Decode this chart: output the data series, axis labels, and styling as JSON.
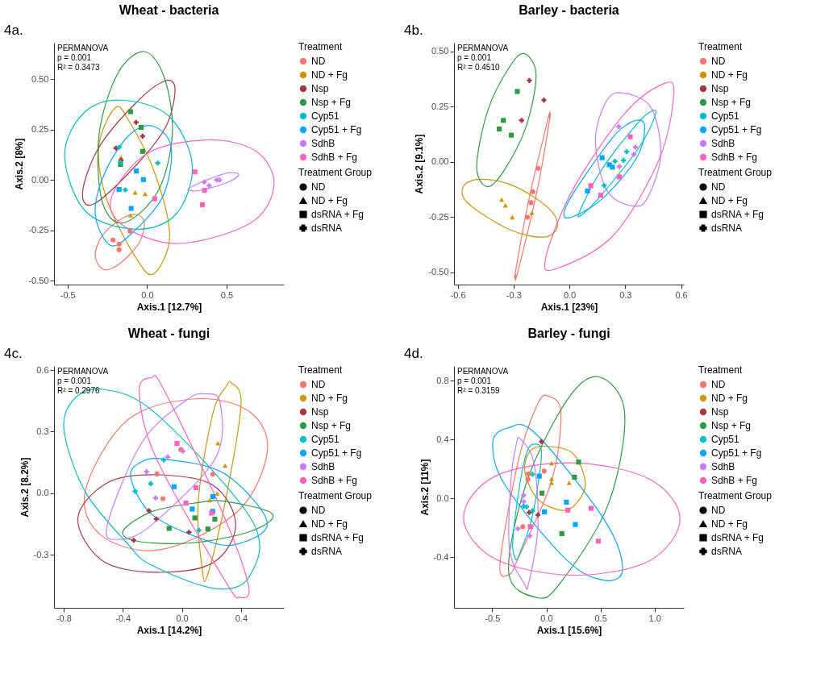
{
  "chart_data": [
    {
      "type": "scatter",
      "title": "Wheat - bacteria",
      "xlabel": "Axis.1 [12.7%]",
      "ylabel": "Axis.2 [8%]",
      "legend_title": [
        "Treatment",
        "Treatment Group"
      ],
      "legend": "right",
      "grid": false,
      "annotations": [
        "4a.",
        "PERMANOVA",
        "p = 0.001",
        "R² = 0.3473",
        "ND",
        "ND + Fg",
        "dsRNA + Fg",
        "dsRNA"
      ],
      "xlim": [
        -0.585,
        0.86
      ],
      "ylim": [
        -0.52,
        0.68
      ],
      "xticks": [
        {
          "value": -0.5,
          "label": "-0.5"
        },
        {
          "value": 0,
          "label": "0.0"
        },
        {
          "value": 0.5,
          "label": "0.5"
        }
      ],
      "yticks": [
        {
          "value": -0.5,
          "label": "-0.50"
        },
        {
          "value": -0.25,
          "label": "-0.25"
        },
        {
          "value": 0,
          "label": "0.00"
        },
        {
          "value": 0.25,
          "label": "0.25"
        },
        {
          "value": 0.5,
          "label": "0.50"
        }
      ],
      "series": [
        {
          "name": "ND",
          "color": "#f8766d",
          "marker": "circle",
          "x": [
            -0.214,
            -0.176,
            -0.176,
            -0.107
          ],
          "values": [
            -0.299,
            -0.319,
            -0.347,
            -0.255
          ]
        },
        {
          "name": "ND + Fg",
          "color": "#cd9600",
          "marker": "triangle",
          "x": [
            -0.164,
            -0.075,
            -0.012,
            -0.104
          ],
          "values": [
            0.111,
            -0.063,
            -0.07,
            -0.176
          ]
        },
        {
          "name": "Nsp",
          "color": "#a83545",
          "marker": "cross",
          "x": [
            -0.196,
            -0.069,
            -0.028,
            -0.164
          ],
          "values": [
            0.157,
            0.285,
            0.216,
            0.096
          ]
        },
        {
          "name": "Nsp + Fg",
          "color": "#2e9a44",
          "marker": "square",
          "x": [
            -0.104,
            -0.037,
            -0.028,
            -0.167
          ],
          "values": [
            0.338,
            0.26,
            0.141,
            0.076
          ]
        },
        {
          "name": "Cyp51",
          "color": "#00bfc4",
          "marker": "cross",
          "x": [
            -0.176,
            0.067,
            -0.137,
            -0.167
          ],
          "values": [
            0.161,
            0.083,
            -0.05,
            0.087
          ]
        },
        {
          "name": "Cyp51 + Fg",
          "color": "#00a9ff",
          "marker": "square",
          "x": [
            -0.067,
            -0.023,
            -0.176,
            -0.1
          ],
          "values": [
            0.043,
            0.001,
            -0.048,
            -0.142
          ]
        },
        {
          "name": "SdhB",
          "color": "#c77cff",
          "marker": "cross",
          "x": [
            0.36,
            0.39,
            0.438,
            0.455
          ],
          "values": [
            -0.012,
            -0.029,
            -0.001,
            -0.001
          ]
        },
        {
          "name": "SdhB + Fg",
          "color": "#ff61c3",
          "marker": "square",
          "x": [
            0.301,
            0.361,
            0.348,
            0.048
          ],
          "values": [
            0.039,
            -0.053,
            -0.124,
            -0.094
          ]
        }
      ]
    },
    {
      "type": "scatter",
      "title": "Barley - bacteria",
      "xlabel": "Axis.1 [23%]",
      "ylabel": "Axis.2 [9.1%]",
      "legend_title": [
        "Treatment",
        "Treatment Group"
      ],
      "legend": "right",
      "grid": false,
      "annotations": [
        "4b.",
        "PERMANOVA",
        "p = 0.001",
        "R² = 0.4510",
        "ND",
        "ND + Fg",
        "dsRNA + Fg",
        "dsRNA"
      ],
      "xlim": [
        -0.62,
        0.615
      ],
      "ylim": [
        -0.556,
        0.54
      ],
      "xticks": [
        {
          "value": -0.6,
          "label": "-0.6"
        },
        {
          "value": -0.3,
          "label": "-0.3"
        },
        {
          "value": 0,
          "label": "0.0"
        },
        {
          "value": 0.3,
          "label": "0.3"
        },
        {
          "value": 0.6,
          "label": "0.6"
        }
      ],
      "yticks": [
        {
          "value": -0.5,
          "label": "-0.50"
        },
        {
          "value": -0.25,
          "label": "-0.25"
        },
        {
          "value": 0,
          "label": "0.00"
        },
        {
          "value": 0.25,
          "label": "0.25"
        },
        {
          "value": 0.5,
          "label": "0.50"
        }
      ],
      "series": [
        {
          "name": "ND",
          "color": "#f8766d",
          "marker": "circle",
          "x": [
            -0.168,
            -0.196,
            -0.206,
            -0.226
          ],
          "values": [
            -0.029,
            -0.135,
            -0.185,
            -0.251
          ]
        },
        {
          "name": "ND + Fg",
          "color": "#cd9600",
          "marker": "triangle",
          "x": [
            -0.364,
            -0.344,
            -0.307,
            -0.202
          ],
          "values": [
            -0.171,
            -0.197,
            -0.251,
            -0.231
          ]
        },
        {
          "name": "Nsp",
          "color": "#a83545",
          "marker": "cross",
          "x": [
            -0.215,
            -0.137,
            -0.257
          ],
          "values": [
            0.369,
            0.28,
            0.188
          ]
        },
        {
          "name": "Nsp + Fg",
          "color": "#2e9a44",
          "marker": "square",
          "x": [
            -0.28,
            -0.355,
            -0.377,
            -0.312
          ],
          "values": [
            0.319,
            0.188,
            0.149,
            0.121
          ]
        },
        {
          "name": "Cyp51",
          "color": "#00bfc4",
          "marker": "cross",
          "x": [
            0.308,
            0.291,
            0.245,
            0.187
          ],
          "values": [
            0.046,
            0.007,
            0.003,
            -0.107
          ]
        },
        {
          "name": "Cyp51 + Fg",
          "color": "#00a9ff",
          "marker": "square",
          "x": [
            0.176,
            0.215,
            0.231,
            0.097
          ],
          "values": [
            0.019,
            -0.013,
            -0.024,
            -0.132
          ]
        },
        {
          "name": "SdhB",
          "color": "#c77cff",
          "marker": "cross",
          "x": [
            0.265,
            0.355,
            0.346,
            0.269
          ],
          "values": [
            0.16,
            0.067,
            0.034,
            -0.021
          ]
        },
        {
          "name": "SdhB + Fg",
          "color": "#ff61c3",
          "marker": "square",
          "x": [
            0.327,
            0.269,
            0.115,
            0.168
          ],
          "values": [
            0.114,
            -0.068,
            -0.108,
            -0.151
          ]
        }
      ]
    },
    {
      "type": "scatter",
      "title": "Wheat - fungi",
      "xlabel": "Axis.1 [14.2%]",
      "ylabel": "Axis.2 [8.2%]",
      "legend_title": [
        "Treatment",
        "Treatment Group"
      ],
      "legend": "right",
      "grid": false,
      "annotations": [
        "4c.",
        "PERMANOVA",
        "p = 0.001",
        "R² = 0.2976",
        "ND",
        "ND + Fg",
        "dsRNA + Fg",
        "dsRNA"
      ],
      "xlim": [
        -0.865,
        0.69
      ],
      "ylim": [
        -0.558,
        0.62
      ],
      "xticks": [
        {
          "value": -0.8,
          "label": "-0.8"
        },
        {
          "value": -0.4,
          "label": "-0.4"
        },
        {
          "value": 0,
          "label": "0.0"
        },
        {
          "value": 0.4,
          "label": "0.4"
        }
      ],
      "yticks": [
        {
          "value": -0.3,
          "label": "-0.3"
        },
        {
          "value": 0,
          "label": "0.0"
        },
        {
          "value": 0.3,
          "label": "0.3"
        },
        {
          "value": 0.6,
          "label": "0.6"
        }
      ],
      "series": [
        {
          "name": "ND",
          "color": "#f8766d",
          "marker": "circle",
          "x": [
            -0.007,
            -0.168,
            -0.128,
            0.209
          ],
          "values": [
            0.213,
            0.094,
            -0.026,
            0.093
          ]
        },
        {
          "name": "ND + Fg",
          "color": "#cd9600",
          "marker": "triangle",
          "x": [
            0.244,
            0.292,
            0.239,
            0.188
          ],
          "values": [
            0.244,
            0.135,
            -0.001,
            -0.034
          ]
        },
        {
          "name": "Nsp",
          "color": "#a83545",
          "marker": "cross",
          "x": [
            -0.223,
            -0.173,
            -0.326,
            0.048
          ],
          "values": [
            -0.085,
            -0.125,
            -0.229,
            -0.19
          ]
        },
        {
          "name": "Nsp + Fg",
          "color": "#2e9a44",
          "marker": "square",
          "x": [
            -0.086,
            0.088,
            0.176,
            0.223
          ],
          "values": [
            -0.171,
            -0.12,
            -0.174,
            -0.126
          ]
        },
        {
          "name": "Cyp51",
          "color": "#00bfc4",
          "marker": "cross",
          "x": [
            -0.123,
            -0.211,
            -0.316,
            0.115
          ],
          "values": [
            0.162,
            0.047,
            0.009,
            -0.18
          ]
        },
        {
          "name": "Cyp51 + Fg",
          "color": "#00a9ff",
          "marker": "square",
          "x": [
            -0.053,
            0.07,
            0.209,
            0.209
          ],
          "values": [
            0.032,
            -0.077,
            -0.016,
            -0.088
          ]
        },
        {
          "name": "SdhB",
          "color": "#c77cff",
          "marker": "cross",
          "x": [
            -0.239,
            -0.096,
            0.007,
            -0.178
          ],
          "values": [
            0.105,
            0.177,
            0.205,
            -0.023
          ]
        },
        {
          "name": "SdhB + Fg",
          "color": "#ff61c3",
          "marker": "square",
          "x": [
            -0.033,
            0.095,
            0.027,
            0.201
          ],
          "values": [
            0.243,
            0.027,
            -0.048,
            -0.096
          ]
        }
      ]
    },
    {
      "type": "scatter",
      "title": "Barley - fungi",
      "xlabel": "Axis.1 [15.6%]",
      "ylabel": "Axis.2 [11%]",
      "legend_title": [
        "Treatment",
        "Treatment Group"
      ],
      "legend": "right",
      "grid": false,
      "annotations": [
        "4d.",
        "PERMANOVA",
        "p = 0.001",
        "R² = 0.3159",
        "ND",
        "ND + Fg",
        "dsRNA + Fg",
        "dsRNA"
      ],
      "xlim": [
        -0.853,
        1.27
      ],
      "ylim": [
        -0.743,
        0.9
      ],
      "xticks": [
        {
          "value": -0.5,
          "label": "-0.5"
        },
        {
          "value": 0,
          "label": "0.0"
        },
        {
          "value": 0.5,
          "label": "0.5"
        },
        {
          "value": 1,
          "label": "1.0"
        }
      ],
      "yticks": [
        {
          "value": -0.4,
          "label": "-0.4"
        },
        {
          "value": 0,
          "label": "0.0"
        },
        {
          "value": 0.4,
          "label": "0.4"
        },
        {
          "value": 0.8,
          "label": "0.8"
        }
      ],
      "series": [
        {
          "name": "ND",
          "color": "#f8766d",
          "marker": "circle",
          "x": [
            -0.02,
            -0.165,
            -0.17,
            -0.218
          ],
          "values": [
            0.186,
            0.167,
            0.13,
            -0.191
          ]
        },
        {
          "name": "ND + Fg",
          "color": "#cd9600",
          "marker": "triangle",
          "x": [
            0.048,
            0.048,
            0.048,
            0.21
          ],
          "values": [
            0.239,
            0.133,
            0.107,
            0.107
          ]
        },
        {
          "name": "Nsp",
          "color": "#a83545",
          "marker": "cross",
          "x": [
            -0.045,
            -0.158,
            -0.078
          ],
          "values": [
            0.386,
            -0.095,
            -0.112
          ]
        },
        {
          "name": "Nsp + Fg",
          "color": "#2e9a44",
          "marker": "square",
          "x": [
            0.298,
            0.26,
            -0.04,
            0.143
          ],
          "values": [
            0.247,
            0.144,
            0.036,
            -0.239
          ]
        },
        {
          "name": "Cyp51",
          "color": "#00bfc4",
          "marker": "cross",
          "x": [
            -0.128,
            -0.21,
            -0.183,
            -0.128
          ],
          "values": [
            0.164,
            -0.053,
            -0.057,
            -0.084
          ]
        },
        {
          "name": "Cyp51 + Fg",
          "color": "#00a9ff",
          "marker": "square",
          "x": [
            -0.065,
            0.185,
            -0.018,
            0.268
          ],
          "values": [
            0.152,
            -0.025,
            -0.091,
            -0.177
          ]
        },
        {
          "name": "SdhB",
          "color": "#c77cff",
          "marker": "cross",
          "x": [
            -0.21,
            -0.21,
            -0.263,
            -0.153
          ],
          "values": [
            0.022,
            -0.022,
            -0.205,
            -0.254
          ]
        },
        {
          "name": "SdhB + Fg",
          "color": "#ff61c3",
          "marker": "square",
          "x": [
            0.198,
            0.413,
            0.48,
            -0.148
          ],
          "values": [
            -0.079,
            -0.067,
            -0.29,
            -0.191
          ]
        }
      ]
    }
  ]
}
